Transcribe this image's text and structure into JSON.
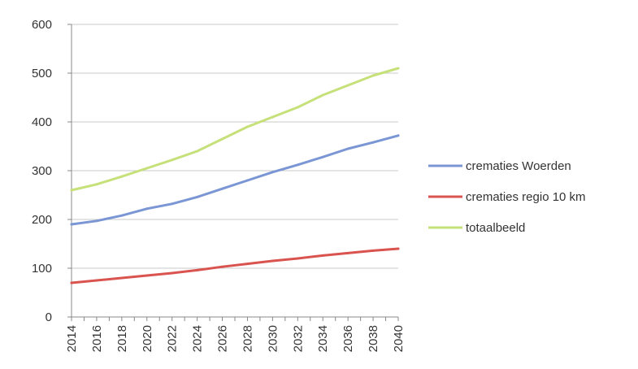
{
  "chart_data": {
    "type": "line",
    "title": "",
    "xlabel": "",
    "ylabel": "",
    "ylim": [
      0,
      600
    ],
    "yticks": [
      0,
      100,
      200,
      300,
      400,
      500,
      600
    ],
    "x_tick_labels": [
      "2014",
      "2016",
      "2018",
      "2020",
      "2022",
      "2024",
      "2026",
      "2028",
      "2030",
      "2032",
      "2034",
      "2036",
      "2038",
      "2040"
    ],
    "grid": "horizontal",
    "legend_position": "right",
    "x": [
      2014,
      2016,
      2018,
      2020,
      2022,
      2024,
      2026,
      2028,
      2030,
      2032,
      2034,
      2036,
      2038,
      2040
    ],
    "series": [
      {
        "name": "crematies Woerden",
        "color": "#7b96d4",
        "values": [
          190,
          197,
          208,
          222,
          232,
          246,
          263,
          280,
          297,
          312,
          328,
          345,
          358,
          372
        ]
      },
      {
        "name": "crematies regio 10 km",
        "color": "#d9534f",
        "values": [
          70,
          75,
          80,
          85,
          90,
          96,
          103,
          109,
          115,
          120,
          126,
          131,
          136,
          140
        ]
      },
      {
        "name": "totaalbeeld",
        "color": "#c6e07a",
        "values": [
          260,
          272,
          288,
          305,
          322,
          340,
          365,
          390,
          410,
          430,
          455,
          475,
          495,
          510
        ]
      }
    ]
  }
}
